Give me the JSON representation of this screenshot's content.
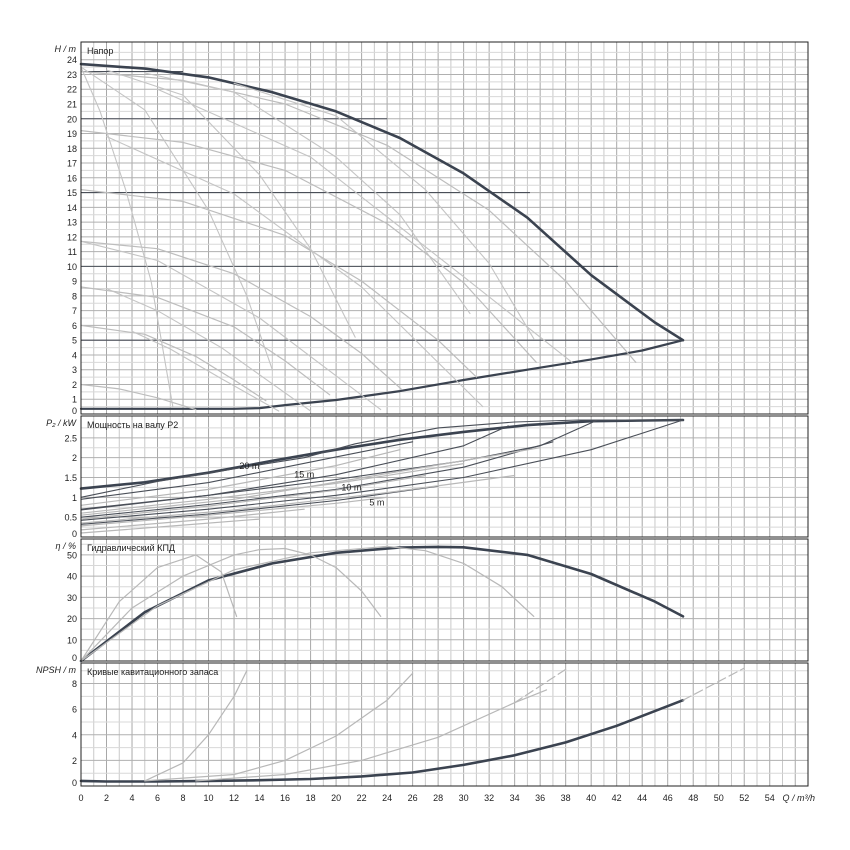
{
  "x_axis": {
    "label": "Q / m³/h",
    "range": [
      0,
      57
    ],
    "ticks": [
      0,
      2,
      4,
      6,
      8,
      10,
      12,
      14,
      16,
      18,
      20,
      22,
      24,
      26,
      28,
      30,
      32,
      34,
      36,
      38,
      40,
      42,
      44,
      46,
      48,
      50,
      52,
      54
    ]
  },
  "chart_data": [
    {
      "type": "line",
      "title": "Напор",
      "ylabel": "H / m",
      "ylim": [
        0,
        25.2
      ],
      "yticks": [
        0,
        1,
        2,
        3,
        4,
        5,
        6,
        7,
        8,
        9,
        10,
        11,
        12,
        13,
        14,
        15,
        16,
        17,
        18,
        19,
        20,
        21,
        22,
        23,
        24
      ],
      "reference_lines": [
        {
          "y": 5,
          "x": [
            0,
            47.2
          ]
        },
        {
          "y": 10,
          "x": [
            0,
            42.1
          ]
        },
        {
          "y": 15,
          "x": [
            0,
            35.2
          ]
        },
        {
          "y": 20,
          "x": [
            0,
            24.0
          ]
        },
        {
          "y": 23.2,
          "x": [
            0,
            8.0
          ]
        }
      ],
      "series": [
        {
          "style": "max",
          "x": [
            0,
            5,
            10,
            15,
            20,
            25,
            30,
            35,
            40,
            45,
            47.2
          ],
          "y": [
            23.7,
            23.4,
            22.8,
            21.8,
            20.5,
            18.7,
            16.3,
            13.3,
            9.4,
            6.2,
            5.0
          ]
        },
        {
          "style": "min",
          "x": [
            0,
            4,
            8,
            12,
            14,
            16,
            20,
            25,
            30,
            35,
            40,
            44,
            47.2
          ],
          "y": [
            0.35,
            0.35,
            0.35,
            0.35,
            0.4,
            0.6,
            0.95,
            1.55,
            2.3,
            3.0,
            3.7,
            4.3,
            5.0
          ]
        },
        {
          "style": "speed",
          "x": [
            0,
            8,
            16,
            24,
            32,
            38,
            43.5
          ],
          "y": [
            23.2,
            22.6,
            21.0,
            18.2,
            13.8,
            9.0,
            3.5
          ]
        },
        {
          "style": "speed",
          "x": [
            0,
            8,
            16,
            24,
            30,
            35.7
          ],
          "y": [
            19.2,
            18.4,
            16.5,
            12.9,
            8.9,
            3.5
          ]
        },
        {
          "style": "speed",
          "x": [
            0,
            8,
            16,
            22,
            28,
            31.0
          ],
          "y": [
            15.2,
            14.4,
            12.1,
            9.0,
            5.0,
            2.5
          ]
        },
        {
          "style": "speed",
          "x": [
            0,
            6,
            12,
            18,
            22,
            25.1
          ],
          "y": [
            11.7,
            11.2,
            9.5,
            6.6,
            4.1,
            1.7
          ]
        },
        {
          "style": "speed",
          "x": [
            0,
            6,
            12,
            16,
            19.5
          ],
          "y": [
            8.6,
            7.9,
            5.9,
            3.6,
            1.3
          ]
        },
        {
          "style": "speed",
          "x": [
            0,
            5,
            9,
            12,
            14.5
          ],
          "y": [
            6.0,
            5.4,
            3.9,
            2.3,
            0.9
          ]
        },
        {
          "style": "speed",
          "x": [
            0,
            3,
            6,
            9.0
          ],
          "y": [
            2.0,
            1.7,
            1.1,
            0.3
          ]
        },
        {
          "style": "efficiency",
          "x": [
            0,
            1.5,
            3.5,
            5.5,
            7.2
          ],
          "y": [
            23.5,
            20.5,
            15.2,
            9.0,
            0.5
          ]
        },
        {
          "style": "efficiency",
          "x": [
            0,
            5,
            10,
            13,
            15.0
          ],
          "y": [
            23.5,
            20.6,
            13.8,
            8.0,
            3.0
          ]
        },
        {
          "style": "efficiency",
          "x": [
            2,
            8,
            14,
            18,
            21.5
          ],
          "y": [
            23.3,
            21.6,
            16.2,
            11.2,
            5.2
          ]
        },
        {
          "style": "efficiency",
          "x": [
            5,
            12,
            20,
            25,
            30.5
          ],
          "y": [
            23.1,
            21.8,
            17.4,
            13.5,
            6.8
          ]
        },
        {
          "style": "efficiency",
          "x": [
            12,
            20,
            27,
            32,
            35.5
          ],
          "y": [
            22.4,
            20.2,
            15.2,
            10.2,
            5.1
          ]
        },
        {
          "style": "efficiency",
          "x": [
            4,
            7,
            11,
            15.5
          ],
          "y": [
            5.6,
            4.4,
            2.4,
            0.2
          ]
        },
        {
          "style": "efficiency",
          "x": [
            2,
            6,
            11,
            18.0
          ],
          "y": [
            8.5,
            7.0,
            4.5,
            0.2
          ]
        },
        {
          "style": "efficiency",
          "x": [
            0,
            6,
            14,
            23.5
          ],
          "y": [
            11.7,
            10.4,
            6.5,
            0.3
          ]
        },
        {
          "style": "efficiency",
          "x": [
            2,
            12,
            22,
            31.5
          ],
          "y": [
            18.8,
            14.9,
            8.6,
            0.5
          ]
        },
        {
          "style": "efficiency",
          "x": [
            6,
            18,
            30,
            38.5
          ],
          "y": [
            22.0,
            17.4,
            9.3,
            3.5
          ]
        }
      ]
    },
    {
      "type": "line",
      "title": "Мощность на валу P2",
      "ylabel": "P₂ / kW",
      "ylim": [
        0,
        3.05
      ],
      "yticks": [
        0,
        0.5,
        1,
        1.5,
        2,
        2.5
      ],
      "ytick_labels": [
        "0",
        "0.5",
        "1",
        "1.5",
        "2",
        "2.5"
      ],
      "annotations": [
        {
          "text": "20 m",
          "x": 13.2,
          "y": 1.72
        },
        {
          "text": "15 m",
          "x": 17.5,
          "y": 1.5
        },
        {
          "text": "10 m",
          "x": 21.2,
          "y": 1.17
        },
        {
          "text": "5 m",
          "x": 23.2,
          "y": 0.8
        }
      ],
      "series": [
        {
          "style": "max",
          "x": [
            0,
            5,
            10,
            15,
            20,
            25,
            30,
            35,
            40,
            47.2
          ],
          "y": [
            1.22,
            1.38,
            1.62,
            1.92,
            2.2,
            2.45,
            2.65,
            2.82,
            2.92,
            2.95
          ]
        },
        {
          "style": "dark",
          "x": [
            0,
            10,
            20,
            26.0
          ],
          "y": [
            0.95,
            1.37,
            2.02,
            2.4
          ]
        },
        {
          "style": "dark",
          "x": [
            0,
            10,
            20,
            30,
            33.5
          ],
          "y": [
            0.68,
            1.05,
            1.57,
            2.3,
            2.8
          ]
        },
        {
          "style": "dark",
          "x": [
            0,
            10,
            20,
            30,
            37.0
          ],
          "y": [
            0.5,
            0.82,
            1.2,
            1.76,
            2.4
          ]
        },
        {
          "style": "dark",
          "x": [
            0,
            10,
            20,
            28.0
          ],
          "y": [
            0.32,
            0.58,
            0.92,
            1.28
          ]
        },
        {
          "style": "dark",
          "x": [
            0,
            6,
            12,
            17.5,
            21.5,
            28,
            34,
            39,
            47.2
          ],
          "y": [
            1.0,
            1.4,
            1.72,
            2.0,
            2.35,
            2.75,
            2.9,
            2.95,
            2.95
          ]
        },
        {
          "style": "dark",
          "x": [
            0,
            10,
            20,
            30,
            36,
            40.5,
            47.2
          ],
          "y": [
            0.7,
            1.05,
            1.45,
            1.92,
            2.3,
            2.95,
            2.95
          ]
        },
        {
          "style": "dark",
          "x": [
            0,
            10,
            20,
            30,
            40,
            47.2
          ],
          "y": [
            0.42,
            0.7,
            1.05,
            1.5,
            2.2,
            2.95
          ]
        },
        {
          "style": "light",
          "x": [
            0,
            10,
            20,
            25.0
          ],
          "y": [
            0.8,
            1.2,
            1.8,
            2.2
          ]
        },
        {
          "style": "light",
          "x": [
            0,
            10,
            20,
            30.0
          ],
          "y": [
            0.6,
            0.95,
            1.35,
            1.85
          ]
        },
        {
          "style": "light",
          "x": [
            0,
            10,
            20,
            27.0
          ],
          "y": [
            0.45,
            0.78,
            1.18,
            1.55
          ]
        },
        {
          "style": "light",
          "x": [
            0,
            10,
            20,
            24.0
          ],
          "y": [
            0.28,
            0.55,
            0.85,
            1.0
          ]
        },
        {
          "style": "light",
          "x": [
            0,
            10,
            17.5
          ],
          "y": [
            0.18,
            0.45,
            0.7
          ]
        },
        {
          "style": "light",
          "x": [
            0,
            8,
            14.0
          ],
          "y": [
            0.1,
            0.3,
            0.45
          ]
        },
        {
          "style": "light",
          "x": [
            0,
            12,
            24,
            36.0
          ],
          "y": [
            0.55,
            0.95,
            1.6,
            2.25
          ]
        },
        {
          "style": "light",
          "x": [
            0,
            12,
            24,
            34.0
          ],
          "y": [
            0.35,
            0.68,
            1.12,
            1.55
          ]
        }
      ]
    },
    {
      "type": "line",
      "title": "Гидравлический КПД",
      "ylabel": "η / %",
      "ylim": [
        0,
        57.5
      ],
      "yticks": [
        0,
        10,
        20,
        30,
        40,
        50
      ],
      "series": [
        {
          "style": "max",
          "x": [
            0,
            5,
            10,
            15,
            20,
            25,
            28,
            30,
            35,
            40,
            45,
            47.2
          ],
          "y": [
            0,
            23,
            38,
            46,
            51,
            53.5,
            53.8,
            53.6,
            50,
            41,
            28,
            21
          ]
        },
        {
          "style": "light",
          "x": [
            0,
            3,
            6,
            9,
            11,
            12.2
          ],
          "y": [
            0,
            28,
            44,
            50,
            42,
            21
          ]
        },
        {
          "style": "light",
          "x": [
            0,
            4,
            8,
            12,
            14,
            16,
            18,
            20,
            22,
            23.5
          ],
          "y": [
            0,
            25,
            40,
            50,
            52.5,
            53,
            50,
            44,
            33,
            21
          ]
        },
        {
          "style": "light",
          "x": [
            0,
            6,
            12,
            18,
            24,
            27,
            30,
            33,
            35.5
          ],
          "y": [
            0,
            26,
            43,
            51,
            54,
            52,
            46,
            35,
            21
          ]
        }
      ]
    },
    {
      "type": "line",
      "title": "Кривые кавитационного запаса",
      "ylabel": "NPSH / m",
      "ylim": [
        0,
        9.6
      ],
      "yticks": [
        0,
        2,
        4,
        6,
        8
      ],
      "series": [
        {
          "style": "max",
          "x": [
            0,
            2,
            6,
            10,
            14,
            18,
            22,
            26,
            30,
            34,
            38,
            42,
            47.2
          ],
          "y": [
            0.4,
            0.35,
            0.35,
            0.4,
            0.45,
            0.55,
            0.75,
            1.05,
            1.65,
            2.4,
            3.4,
            4.7,
            6.7
          ]
        },
        {
          "style": "light",
          "x": [
            5,
            8,
            10,
            12,
            13.0
          ],
          "y": [
            0.4,
            1.8,
            4.0,
            7.0,
            9.0
          ]
        },
        {
          "style": "light",
          "x": [
            5,
            12,
            16,
            20,
            24,
            26.0
          ],
          "y": [
            0.4,
            0.9,
            2.0,
            3.9,
            6.7,
            8.8
          ]
        },
        {
          "style": "light",
          "x": [
            9,
            16,
            22,
            28,
            34,
            36.5
          ],
          "y": [
            0.4,
            0.9,
            2.0,
            3.8,
            6.5,
            7.5
          ]
        },
        {
          "style": "light_dashed",
          "x": [
            34,
            38.0
          ],
          "y": [
            6.5,
            9.1
          ]
        },
        {
          "style": "light_dashed",
          "x": [
            47.2,
            52.0
          ],
          "y": [
            6.7,
            9.2
          ]
        }
      ]
    }
  ]
}
